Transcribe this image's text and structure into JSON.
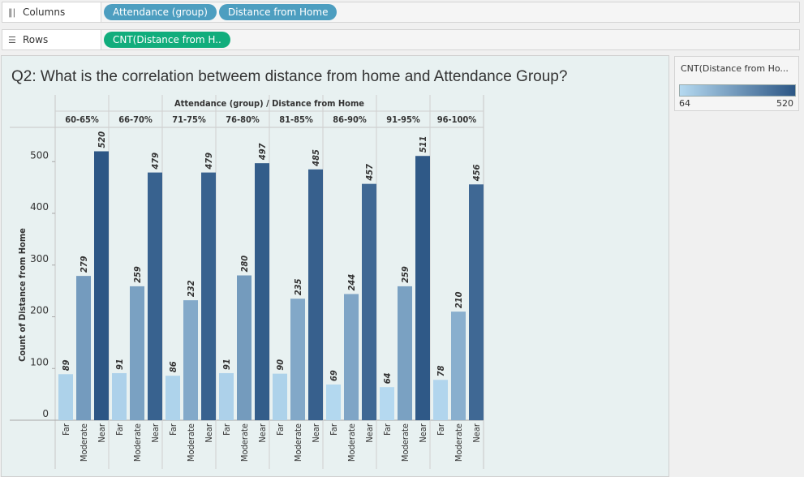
{
  "shelves": {
    "columns": {
      "label": "Columns",
      "pills": [
        "Attendance (group)",
        "Distance from Home"
      ]
    },
    "rows": {
      "label": "Rows",
      "pills": [
        "CNT(Distance from H.."
      ]
    }
  },
  "legend": {
    "title": "CNT(Distance from Ho...",
    "min_label": "64",
    "max_label": "520",
    "color_low": "#b5d9f0",
    "color_high": "#2c5685"
  },
  "chart_data": {
    "type": "bar",
    "title": "Q2: What is the correlation betweem distance from home and Attendance Group?",
    "header": "Attendance (group)  /  Distance from Home",
    "ylabel": "Count of Distance from Home",
    "ylim": [
      0,
      560
    ],
    "yticks": [
      0,
      100,
      200,
      300,
      400,
      500
    ],
    "subcategories": [
      "Far",
      "Moderate",
      "Near"
    ],
    "groups": [
      {
        "name": "60-65%",
        "values": [
          89,
          279,
          520
        ]
      },
      {
        "name": "66-70%",
        "values": [
          91,
          259,
          479
        ]
      },
      {
        "name": "71-75%",
        "values": [
          86,
          232,
          479
        ]
      },
      {
        "name": "76-80%",
        "values": [
          91,
          280,
          497
        ]
      },
      {
        "name": "81-85%",
        "values": [
          90,
          235,
          485
        ]
      },
      {
        "name": "86-90%",
        "values": [
          69,
          244,
          457
        ]
      },
      {
        "name": "91-95%",
        "values": [
          64,
          259,
          511
        ]
      },
      {
        "name": "96-100%",
        "values": [
          78,
          210,
          456
        ]
      }
    ],
    "legend_position": "right",
    "grid": false
  }
}
